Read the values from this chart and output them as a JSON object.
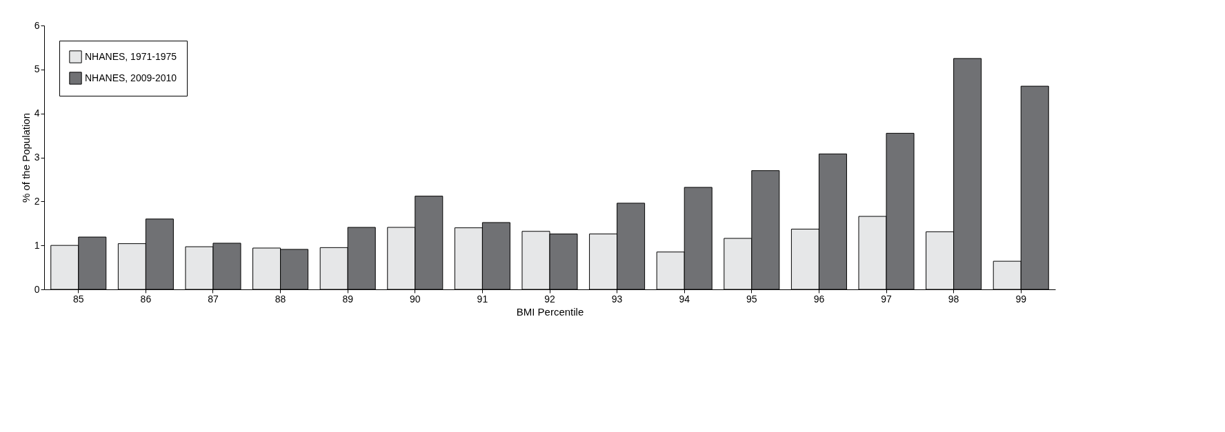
{
  "chart_data": {
    "type": "bar",
    "xlabel": "BMI Percentile",
    "ylabel": "% of the Population",
    "categories": [
      "85",
      "86",
      "87",
      "88",
      "89",
      "90",
      "91",
      "92",
      "93",
      "94",
      "95",
      "96",
      "97",
      "98",
      "99"
    ],
    "series": [
      {
        "name": "NHANES, 1971-1975",
        "color": "#e6e7e8",
        "values": [
          1.0,
          1.04,
          0.97,
          0.94,
          0.95,
          1.41,
          1.4,
          1.32,
          1.26,
          0.85,
          1.16,
          1.37,
          1.66,
          1.31,
          0.64
        ]
      },
      {
        "name": "NHANES, 2009-2010",
        "color": "#707174",
        "values": [
          1.19,
          1.6,
          1.05,
          0.91,
          1.41,
          2.12,
          1.52,
          1.26,
          1.96,
          2.32,
          2.7,
          3.08,
          3.55,
          5.25,
          4.62
        ]
      }
    ],
    "ylim": [
      0,
      6
    ],
    "yticks": [
      0,
      1,
      2,
      3,
      4,
      5,
      6
    ],
    "grid": false,
    "legend": "top left"
  }
}
